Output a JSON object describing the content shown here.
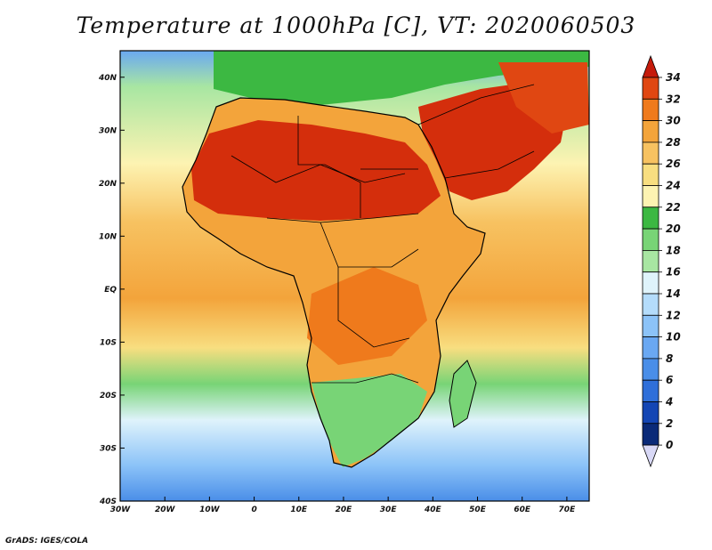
{
  "title": "Temperature at 1000hPa [C], VT: 2020060503",
  "credit": "GrADS: IGES/COLA",
  "colors": {
    "levels": [
      0,
      2,
      4,
      6,
      8,
      10,
      12,
      14,
      16,
      18,
      20,
      22,
      24,
      26,
      28,
      30,
      32,
      34
    ],
    "fills": [
      "#0a2a78",
      "#1446b4",
      "#2f6fd9",
      "#4a8ee8",
      "#6aa8f2",
      "#8cc3f8",
      "#b4dcfb",
      "#dff3fb",
      "#a8e6a2",
      "#78d476",
      "#3cb842",
      "#fdf3b2",
      "#f8de80",
      "#f7c261",
      "#f3a43b",
      "#ef7a1c",
      "#e04712",
      "#c51b0b"
    ],
    "below": "#d8d8f6",
    "ocean_mid": "#b4dcfb",
    "ocean_south": "#6aa8f2",
    "sahara": "#d42e0c",
    "outline": "#000000"
  },
  "map": {
    "lon_range": [
      -30,
      75
    ],
    "lat_range": [
      -40,
      45
    ],
    "lon_ticks": [
      "30W",
      "20W",
      "10W",
      "0",
      "10E",
      "20E",
      "30E",
      "40E",
      "50E",
      "60E",
      "70E"
    ],
    "lat_ticks": [
      "40S",
      "30S",
      "20S",
      "10S",
      "EQ",
      "10N",
      "20N",
      "30N",
      "40N"
    ]
  },
  "colorbar": {
    "labels": [
      "0",
      "2",
      "4",
      "6",
      "8",
      "10",
      "12",
      "14",
      "16",
      "18",
      "20",
      "22",
      "24",
      "26",
      "28",
      "30",
      "32",
      "34"
    ]
  }
}
